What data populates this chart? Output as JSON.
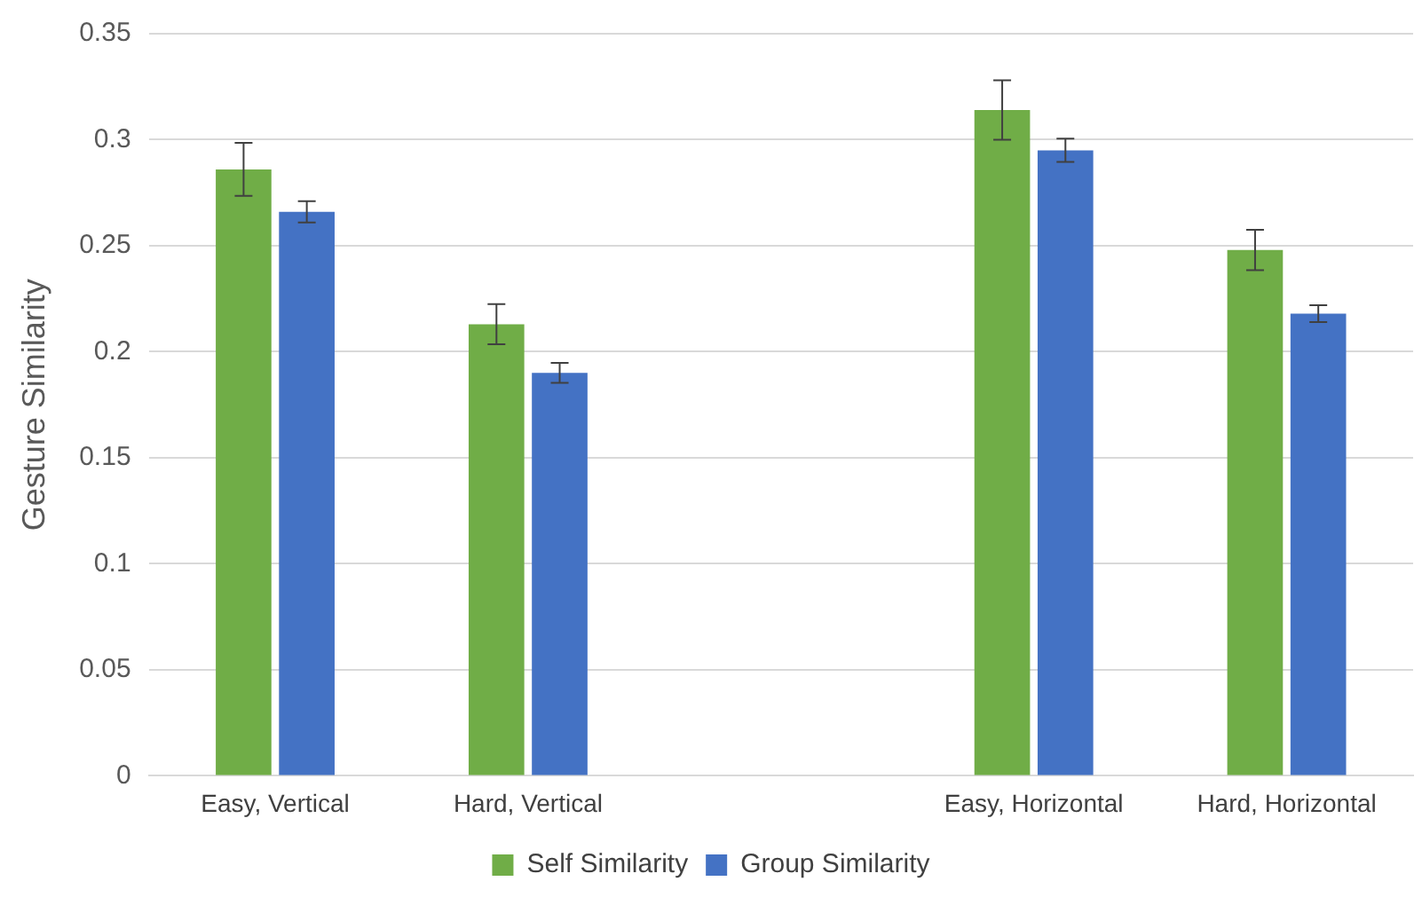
{
  "chart_data": {
    "type": "bar",
    "ylabel": "Gesture Similarity",
    "categories": [
      "Easy, Vertical",
      "Hard, Vertical",
      null,
      "Easy, Horizontal",
      "Hard, Horizontal"
    ],
    "series": [
      {
        "name": "Self Similarity",
        "color": "#70ad47",
        "values": [
          0.286,
          0.213,
          null,
          0.314,
          0.248
        ],
        "errors": [
          0.0125,
          0.0095,
          null,
          0.014,
          0.0095
        ]
      },
      {
        "name": "Group Similarity",
        "color": "#4472c4",
        "values": [
          0.266,
          0.19,
          null,
          0.295,
          0.218
        ],
        "errors": [
          0.005,
          0.0047,
          null,
          0.0055,
          0.004
        ]
      }
    ],
    "ylim": [
      0,
      0.35
    ],
    "yticks": [
      0,
      0.05,
      0.1,
      0.15,
      0.2,
      0.25,
      0.3,
      0.35
    ],
    "grid": "y",
    "legend": "bottom"
  }
}
